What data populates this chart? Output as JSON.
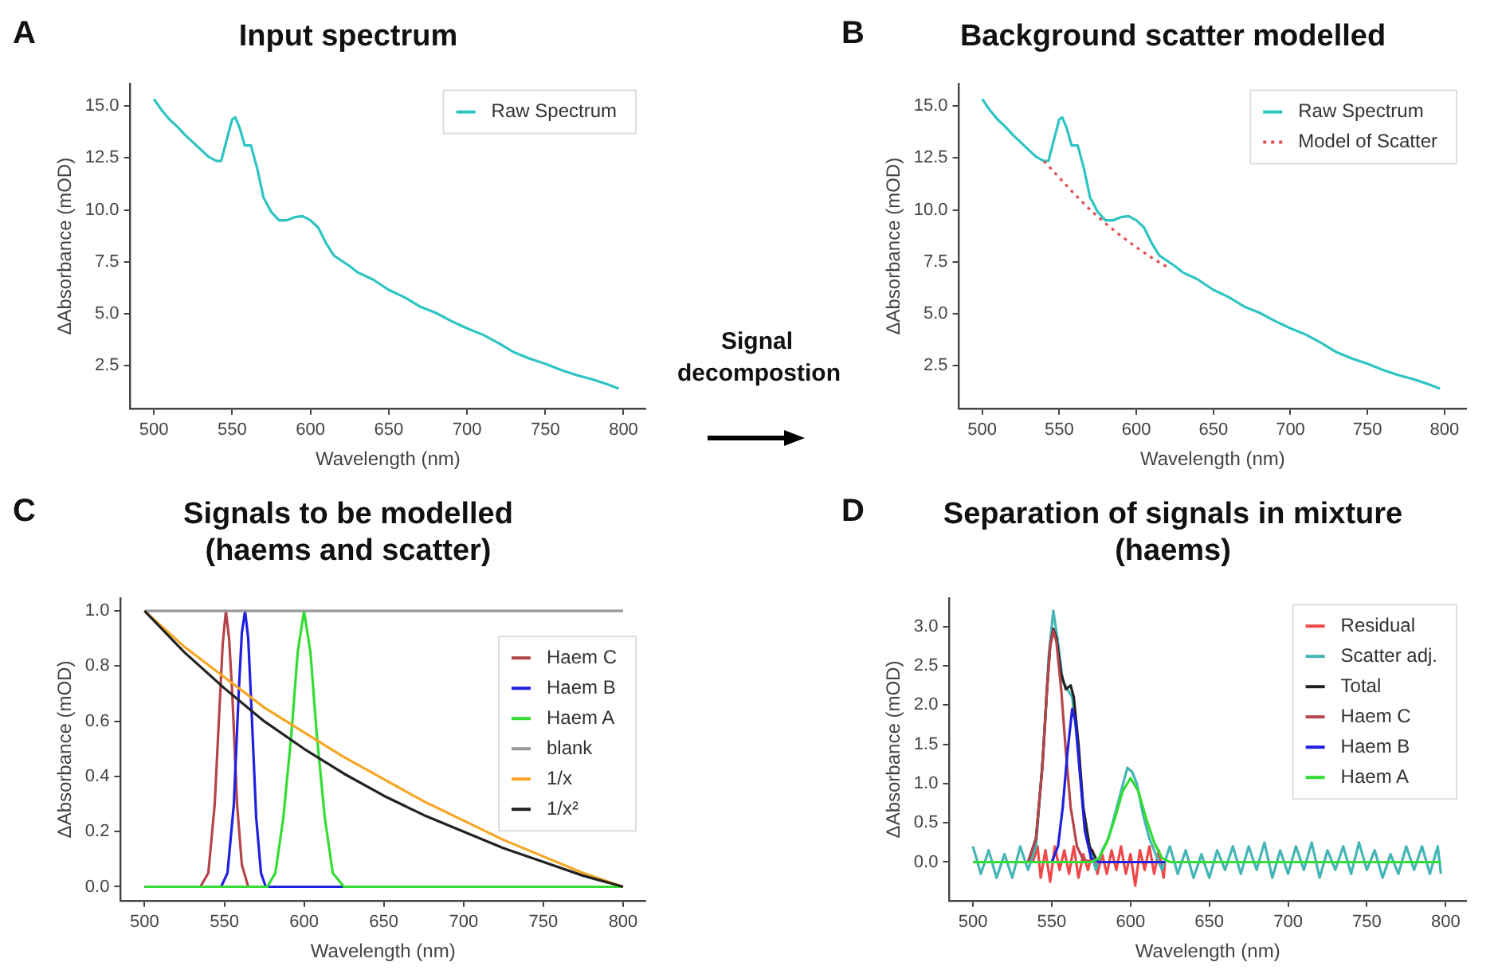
{
  "chart_data": [
    {
      "type": "line",
      "title": "Input spectrum",
      "annotations": [
        "A"
      ],
      "xlabel": "Wavelength (nm)",
      "ylabel": "ΔAbsorbance (mOD)",
      "xlim": [
        485,
        814
      ],
      "ylim": [
        0.45,
        16.05
      ],
      "xticks": [
        500,
        550,
        600,
        650,
        700,
        750,
        800
      ],
      "yticks": [
        2.5,
        {
          "value": 5,
          "label": "5.0"
        },
        7.5,
        {
          "value": 10,
          "label": "10.0"
        },
        12.5,
        {
          "value": 15,
          "label": "15.0"
        }
      ],
      "legend": "top right",
      "x": [
        500,
        505,
        510,
        515,
        520,
        525,
        530,
        535,
        540,
        543,
        547,
        550,
        552,
        555,
        558,
        562,
        566,
        570,
        575,
        580,
        585,
        590,
        595,
        600,
        605,
        610,
        615,
        620,
        625,
        630,
        640,
        650,
        660,
        670,
        680,
        690,
        700,
        710,
        720,
        730,
        740,
        750,
        760,
        770,
        780,
        790,
        797
      ],
      "series": [
        {
          "name": "Raw Spectrum",
          "color": "#2ec4c4",
          "values": [
            15.33,
            14.8,
            14.35,
            14.0,
            13.6,
            13.25,
            12.9,
            12.55,
            12.35,
            12.35,
            13.5,
            14.35,
            14.45,
            13.9,
            13.1,
            13.1,
            12.0,
            10.6,
            9.9,
            9.5,
            9.5,
            9.65,
            9.7,
            9.5,
            9.15,
            8.4,
            7.8,
            7.55,
            7.3,
            7.0,
            6.65,
            6.15,
            5.8,
            5.35,
            5.05,
            4.65,
            4.3,
            4.0,
            3.6,
            3.15,
            2.85,
            2.6,
            2.3,
            2.05,
            1.85,
            1.6,
            1.4
          ]
        }
      ]
    },
    {
      "type": "other",
      "annotations": [
        "Signal decompostion"
      ]
    },
    {
      "type": "line",
      "title": "Background scatter modelled",
      "annotations": [
        "B"
      ],
      "xlabel": "Wavelength (nm)",
      "ylabel": "ΔAbsorbance (mOD)",
      "xlim": [
        485,
        814
      ],
      "ylim": [
        0.45,
        16.05
      ],
      "xticks": [
        500,
        550,
        600,
        650,
        700,
        750,
        800
      ],
      "yticks": [
        2.5,
        {
          "value": 5,
          "label": "5.0"
        },
        7.5,
        {
          "value": 10,
          "label": "10.0"
        },
        12.5,
        {
          "value": 15,
          "label": "15.0"
        }
      ],
      "legend": "top right",
      "x": [
        500,
        505,
        510,
        515,
        520,
        525,
        530,
        535,
        540,
        543,
        547,
        550,
        552,
        555,
        558,
        562,
        566,
        570,
        575,
        580,
        585,
        590,
        595,
        600,
        605,
        610,
        615,
        620,
        625,
        630,
        640,
        650,
        660,
        670,
        680,
        690,
        700,
        710,
        720,
        730,
        740,
        750,
        760,
        770,
        780,
        790,
        797
      ],
      "series": [
        {
          "name": "Raw Spectrum",
          "color": "#2ec4c4",
          "values": [
            15.33,
            14.8,
            14.35,
            14.0,
            13.6,
            13.25,
            12.9,
            12.55,
            12.35,
            12.35,
            13.5,
            14.35,
            14.45,
            13.9,
            13.1,
            13.1,
            12.0,
            10.6,
            9.9,
            9.5,
            9.5,
            9.65,
            9.7,
            9.5,
            9.15,
            8.4,
            7.8,
            7.55,
            7.3,
            7.0,
            6.65,
            6.15,
            5.8,
            5.35,
            5.05,
            4.65,
            4.3,
            4.0,
            3.6,
            3.15,
            2.85,
            2.6,
            2.3,
            2.05,
            1.85,
            1.6,
            1.4
          ]
        },
        {
          "name": "Model of Scatter",
          "color": "#e05050",
          "line_style": "dotted",
          "x": [
            540,
            550,
            560,
            570,
            580,
            590,
            600,
            610,
            620
          ],
          "values": [
            12.35,
            11.55,
            10.75,
            10.0,
            9.35,
            8.75,
            8.2,
            7.7,
            7.25
          ]
        }
      ]
    },
    {
      "type": "line",
      "title": "Signals to be modelled\n(haems and scatter)",
      "annotations": [
        "C"
      ],
      "xlabel": "Wavelength (nm)",
      "ylabel": "ΔAbsorbance (mOD)",
      "xlim": [
        485,
        814
      ],
      "ylim": [
        -0.05,
        1.046
      ],
      "xticks": [
        500,
        550,
        600,
        650,
        700,
        750,
        800
      ],
      "yticks": [
        {
          "value": 0,
          "label": "0.0"
        },
        0.2,
        0.4,
        0.6,
        0.8,
        {
          "value": 1,
          "label": "1.0"
        }
      ],
      "legend": "top right",
      "series": [
        {
          "name": "Haem C",
          "color": "#b5454b",
          "x": [
            500,
            535,
            540,
            544,
            547,
            549,
            551,
            553,
            555,
            558,
            561,
            565,
            570
          ],
          "values": [
            0,
            0,
            0.05,
            0.3,
            0.65,
            0.88,
            1.0,
            0.9,
            0.7,
            0.3,
            0.08,
            0,
            0
          ]
        },
        {
          "name": "Haem B",
          "color": "#2020e0",
          "x": [
            500,
            548,
            552,
            556,
            559,
            561,
            563,
            565,
            567,
            570,
            573,
            576,
            627
          ],
          "values": [
            0,
            0,
            0.05,
            0.3,
            0.7,
            0.92,
            1.0,
            0.9,
            0.65,
            0.25,
            0.05,
            0,
            0
          ]
        },
        {
          "name": "Haem A",
          "color": "#33dd33",
          "x": [
            500,
            577,
            582,
            587,
            592,
            596,
            600,
            604,
            608,
            613,
            618,
            625,
            800
          ],
          "values": [
            0,
            0,
            0.05,
            0.25,
            0.55,
            0.85,
            1.0,
            0.85,
            0.55,
            0.25,
            0.05,
            0,
            0
          ]
        },
        {
          "name": "blank",
          "color": "#999999",
          "x": [
            500,
            800
          ],
          "values": [
            1.0,
            1.0
          ]
        },
        {
          "name": "1/x",
          "color": "#f5a623",
          "x": [
            500,
            525,
            550,
            575,
            600,
            625,
            650,
            675,
            700,
            725,
            750,
            775,
            800
          ],
          "values": [
            1.0,
            0.87,
            0.76,
            0.65,
            0.56,
            0.47,
            0.39,
            0.31,
            0.24,
            0.17,
            0.11,
            0.05,
            0
          ]
        },
        {
          "name": "1/x²",
          "color": "#222222",
          "x": [
            500,
            525,
            550,
            575,
            600,
            625,
            650,
            675,
            700,
            725,
            750,
            775,
            800
          ],
          "values": [
            1.0,
            0.85,
            0.72,
            0.6,
            0.5,
            0.41,
            0.33,
            0.26,
            0.2,
            0.14,
            0.09,
            0.04,
            0
          ]
        }
      ]
    },
    {
      "type": "line",
      "title": "Separation of signals in mixture\n(haems)",
      "annotations": [
        "D"
      ],
      "xlabel": "Wavelength (nm)",
      "ylabel": "ΔAbsorbance (mOD)",
      "xlim": [
        485,
        813
      ],
      "ylim": [
        -0.49,
        3.36
      ],
      "xticks": [
        500,
        550,
        600,
        650,
        700,
        750,
        800
      ],
      "yticks": [
        {
          "value": 0,
          "label": "0.0"
        },
        0.5,
        {
          "value": 1,
          "label": "1.0"
        },
        1.5,
        {
          "value": 2,
          "label": "2.0"
        },
        2.5,
        {
          "value": 3,
          "label": "3.0"
        }
      ],
      "legend": "top right",
      "series": [
        {
          "name": "Residual",
          "color": "#f04848",
          "x": [
            538,
            541,
            543,
            546,
            549,
            552,
            555,
            558,
            561,
            564,
            567,
            570,
            573,
            576,
            579,
            582,
            585,
            588,
            591,
            594,
            597,
            600,
            603,
            606,
            609,
            612,
            615,
            618,
            621,
            622
          ],
          "values": [
            0,
            0.2,
            -0.2,
            0.15,
            -0.25,
            0.2,
            -0.1,
            0.15,
            -0.15,
            0.2,
            -0.2,
            0.1,
            -0.1,
            0.15,
            -0.15,
            0.1,
            -0.15,
            0.15,
            -0.1,
            0.2,
            -0.15,
            0.1,
            -0.3,
            0.15,
            -0.1,
            0.2,
            -0.15,
            0.15,
            -0.2,
            0
          ]
        },
        {
          "name": "Scatter adj.",
          "color": "#45b5b5",
          "x": [
            500,
            505,
            510,
            515,
            520,
            525,
            530,
            535,
            540,
            545,
            548,
            551,
            554,
            557,
            560,
            563,
            566,
            570,
            574,
            578,
            582,
            586,
            590,
            594,
            598,
            601,
            604,
            608,
            612,
            616,
            620,
            625,
            630,
            635,
            640,
            645,
            650,
            655,
            660,
            665,
            670,
            675,
            680,
            685,
            690,
            695,
            700,
            705,
            710,
            715,
            720,
            725,
            730,
            735,
            740,
            745,
            750,
            755,
            760,
            765,
            770,
            775,
            780,
            785,
            790,
            795,
            797
          ],
          "values": [
            0.2,
            -0.15,
            0.15,
            -0.2,
            0.1,
            -0.2,
            0.2,
            -0.1,
            0.2,
            1.5,
            2.6,
            3.2,
            2.8,
            2.3,
            2.2,
            2.1,
            1.6,
            0.7,
            0.2,
            -0.1,
            0.15,
            0.3,
            0.6,
            0.9,
            1.2,
            1.15,
            1.0,
            0.6,
            0.3,
            0.1,
            -0.1,
            0.2,
            -0.15,
            0.15,
            -0.2,
            0.1,
            -0.2,
            0.15,
            -0.1,
            0.2,
            -0.15,
            0.2,
            -0.1,
            0.25,
            -0.2,
            0.15,
            -0.15,
            0.2,
            -0.1,
            0.25,
            -0.2,
            0.15,
            -0.1,
            0.2,
            -0.15,
            0.25,
            -0.1,
            0.15,
            -0.2,
            0.1,
            -0.15,
            0.2,
            -0.1,
            0.2,
            -0.15,
            0.2,
            -0.15
          ]
        },
        {
          "name": "Total",
          "color": "#222222",
          "x": [
            535,
            540,
            544,
            547,
            549,
            551,
            553,
            556,
            559,
            562,
            564,
            567,
            570,
            574,
            578
          ],
          "values": [
            0,
            0.3,
            1.2,
            2.2,
            2.75,
            2.97,
            2.85,
            2.4,
            2.2,
            2.25,
            2.1,
            1.5,
            0.7,
            0.2,
            0.05
          ]
        },
        {
          "name": "Haem C",
          "color": "#b5454b",
          "x": [
            500,
            535,
            540,
            544,
            547,
            549,
            551,
            553,
            556,
            559,
            562,
            566,
            570,
            575
          ],
          "values": [
            0,
            0,
            0.3,
            1.2,
            2.2,
            2.75,
            2.95,
            2.8,
            2.2,
            1.4,
            0.7,
            0.2,
            0.03,
            0
          ]
        },
        {
          "name": "Haem B",
          "color": "#2020e0",
          "x": [
            500,
            550,
            554,
            557,
            560,
            563,
            565,
            568,
            571,
            575,
            580,
            622
          ],
          "values": [
            0,
            0,
            0.2,
            0.7,
            1.4,
            1.95,
            1.8,
            1.1,
            0.4,
            0.05,
            0,
            0
          ]
        },
        {
          "name": "Haem A",
          "color": "#33dd33",
          "x": [
            500,
            575,
            580,
            585,
            590,
            595,
            600,
            605,
            610,
            615,
            620,
            625,
            797
          ],
          "values": [
            0,
            0,
            0.05,
            0.25,
            0.55,
            0.9,
            1.07,
            0.9,
            0.55,
            0.25,
            0.05,
            0,
            0
          ]
        }
      ]
    }
  ]
}
